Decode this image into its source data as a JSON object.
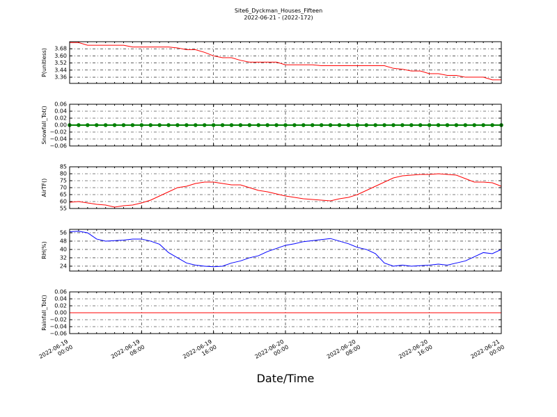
{
  "title": "Site6_Dyckman_Houses_Fifteen",
  "subtitle": "2022-06-21 - (2022-172)",
  "xlabel": "Date/Time",
  "x": [
    "2022-06-19 00:00",
    "2022-06-19 01:00",
    "2022-06-19 02:00",
    "2022-06-19 03:00",
    "2022-06-19 04:00",
    "2022-06-19 05:00",
    "2022-06-19 06:00",
    "2022-06-19 07:00",
    "2022-06-19 08:00",
    "2022-06-19 09:00",
    "2022-06-19 10:00",
    "2022-06-19 11:00",
    "2022-06-19 12:00",
    "2022-06-19 13:00",
    "2022-06-19 14:00",
    "2022-06-19 15:00",
    "2022-06-19 16:00",
    "2022-06-19 17:00",
    "2022-06-19 18:00",
    "2022-06-19 19:00",
    "2022-06-19 20:00",
    "2022-06-19 21:00",
    "2022-06-19 22:00",
    "2022-06-19 23:00",
    "2022-06-20 00:00",
    "2022-06-20 01:00",
    "2022-06-20 02:00",
    "2022-06-20 03:00",
    "2022-06-20 04:00",
    "2022-06-20 05:00",
    "2022-06-20 06:00",
    "2022-06-20 07:00",
    "2022-06-20 08:00",
    "2022-06-20 09:00",
    "2022-06-20 10:00",
    "2022-06-20 11:00",
    "2022-06-20 12:00",
    "2022-06-20 13:00",
    "2022-06-20 14:00",
    "2022-06-20 15:00",
    "2022-06-20 16:00",
    "2022-06-20 17:00",
    "2022-06-20 18:00",
    "2022-06-20 19:00",
    "2022-06-20 20:00",
    "2022-06-20 21:00",
    "2022-06-20 22:00",
    "2022-06-20 23:00",
    "2022-06-21 00:00"
  ],
  "xlim": [
    "2022-06-19 00:00",
    "2022-06-21 00:00"
  ],
  "xticks": [
    "2022-06-19 00:00",
    "2022-06-19 08:00",
    "2022-06-19 16:00",
    "2022-06-20 00:00",
    "2022-06-20 08:00",
    "2022-06-20 16:00",
    "2022-06-21 00:00"
  ],
  "chart_data": [
    {
      "type": "line",
      "ylabel": "P(unitless)",
      "color": "#ff0000",
      "grid": true,
      "ylim": [
        3.29,
        3.76
      ],
      "yticks": [
        3.36,
        3.44,
        3.52,
        {
          "value": 3.6,
          "label": "3.60"
        },
        3.68
      ],
      "values": [
        3.75,
        3.75,
        3.72,
        3.72,
        3.72,
        3.72,
        3.72,
        3.7,
        3.7,
        3.7,
        3.7,
        3.7,
        3.69,
        3.67,
        3.67,
        3.64,
        3.6,
        3.58,
        3.58,
        3.55,
        3.53,
        3.53,
        3.53,
        3.53,
        3.5,
        3.5,
        3.5,
        3.5,
        3.49,
        3.49,
        3.49,
        3.49,
        3.49,
        3.49,
        3.49,
        3.49,
        3.46,
        3.45,
        3.43,
        3.43,
        3.4,
        3.4,
        3.38,
        3.38,
        3.36,
        3.36,
        3.36,
        3.33,
        3.33
      ]
    },
    {
      "type": "line",
      "ylabel": "Snowfall_Tot()",
      "color": "#008000",
      "grid": true,
      "markers": true,
      "ylim": [
        -0.06,
        0.06
      ],
      "yticks": [
        {
          "value": -0.06,
          "label": "−0.06"
        },
        {
          "value": -0.04,
          "label": "−0.04"
        },
        {
          "value": -0.02,
          "label": "−0.02"
        },
        {
          "value": 0,
          "label": "0.00"
        },
        0.02,
        0.04,
        0.06
      ],
      "values": [
        0,
        0,
        0,
        0,
        0,
        0,
        0,
        0,
        0,
        0,
        0,
        0,
        0,
        0,
        0,
        0,
        0,
        0,
        0,
        0,
        0,
        0,
        0,
        0,
        0,
        0,
        0,
        0,
        0,
        0,
        0,
        0,
        0,
        0,
        0,
        0,
        0,
        0,
        0,
        0,
        0,
        0,
        0,
        0,
        0,
        0,
        0,
        0,
        0
      ]
    },
    {
      "type": "line",
      "ylabel": "AirTF()",
      "color": "#ff0000",
      "grid": true,
      "ylim": [
        55,
        85
      ],
      "yticks": [
        55,
        60,
        65,
        70,
        75,
        80,
        85
      ],
      "values": [
        59.5,
        60,
        59,
        58,
        57.5,
        56,
        57,
        57.5,
        59,
        61,
        64,
        67,
        70,
        71,
        73,
        74,
        74,
        73,
        72,
        72,
        70,
        68,
        67,
        65.5,
        64,
        63,
        62,
        61.5,
        61,
        60.5,
        62,
        63,
        65,
        68,
        71,
        74,
        77,
        78.5,
        79,
        79.5,
        79.5,
        80,
        79.5,
        79,
        76.5,
        74,
        74,
        73.5,
        71
      ]
    },
    {
      "type": "line",
      "ylabel": "RH(%)",
      "color": "#0000ff",
      "grid": true,
      "ylim": [
        19.3,
        59.3
      ],
      "yticks": [
        24,
        32,
        40,
        48,
        56
      ],
      "values": [
        57,
        57.5,
        56,
        50,
        48,
        48.5,
        49,
        50,
        50,
        48,
        45,
        37,
        32,
        27,
        25,
        24,
        23.5,
        24,
        27,
        29,
        32,
        34,
        38,
        41,
        44,
        45.5,
        47.5,
        48.5,
        49.5,
        50.5,
        48,
        45.5,
        42,
        40,
        36,
        27,
        24,
        25,
        24,
        24.5,
        25,
        26,
        25,
        27,
        29,
        33,
        37,
        36,
        40
      ]
    },
    {
      "type": "line",
      "ylabel": "Rainfall_Tot()",
      "color": "#ff0000",
      "grid": true,
      "ylim": [
        -0.06,
        0.06
      ],
      "yticks": [
        {
          "value": -0.06,
          "label": "−0.06"
        },
        {
          "value": -0.04,
          "label": "−0.04"
        },
        {
          "value": -0.02,
          "label": "−0.02"
        },
        {
          "value": 0,
          "label": "0.00"
        },
        0.02,
        0.04,
        0.06
      ],
      "values": [
        0,
        0,
        0,
        0,
        0,
        0,
        0,
        0,
        0,
        0,
        0,
        0,
        0,
        0,
        0,
        0,
        0,
        0,
        0,
        0,
        0,
        0,
        0,
        0,
        0,
        0,
        0,
        0,
        0,
        0,
        0,
        0,
        0,
        0,
        0,
        0,
        0,
        0,
        0,
        0,
        0,
        0,
        0,
        0,
        0,
        0,
        0,
        0,
        0
      ]
    }
  ]
}
